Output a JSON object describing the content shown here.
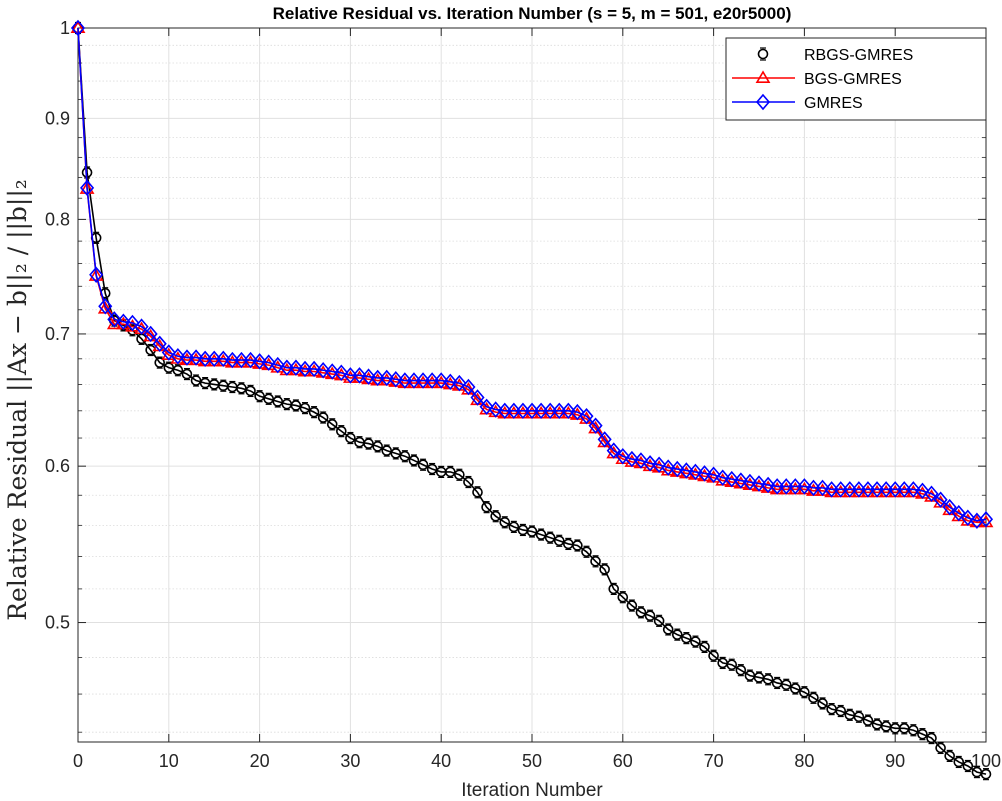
{
  "chart_data": {
    "type": "line",
    "title": "Relative Residual vs. Iteration Number (s = 5, m = 501, e20r5000)",
    "xlabel": "Iteration Number",
    "ylabel": "Relative Residual ||Ax − b||₂ / ||b||₂",
    "xlim": [
      0,
      100
    ],
    "ylim": [
      0.435,
      1.0
    ],
    "y_scale": "log",
    "grid": true,
    "legend_position": "top-right",
    "x_ticks": [
      0,
      10,
      20,
      30,
      40,
      50,
      60,
      70,
      80,
      90,
      100
    ],
    "x_tick_labels": [
      "0",
      "10",
      "20",
      "30",
      "40",
      "50",
      "60",
      "70",
      "80",
      "90",
      "100"
    ],
    "y_ticks": [
      0.5,
      0.6,
      0.7,
      0.8,
      0.9,
      1.0
    ],
    "y_tick_labels": [
      "0.5",
      "0.6",
      "0.7",
      "0.8",
      "0.9",
      "1"
    ],
    "series": [
      {
        "name": "RBGS-GMRES",
        "color": "#000000",
        "marker": "circle",
        "values": [
          1.0,
          0.845,
          0.783,
          0.734,
          0.711,
          0.707,
          0.703,
          0.696,
          0.687,
          0.677,
          0.673,
          0.671,
          0.668,
          0.663,
          0.661,
          0.66,
          0.659,
          0.658,
          0.657,
          0.655,
          0.651,
          0.649,
          0.647,
          0.645,
          0.644,
          0.642,
          0.639,
          0.635,
          0.63,
          0.625,
          0.62,
          0.617,
          0.616,
          0.614,
          0.611,
          0.609,
          0.607,
          0.604,
          0.601,
          0.598,
          0.596,
          0.596,
          0.594,
          0.589,
          0.582,
          0.572,
          0.566,
          0.562,
          0.559,
          0.557,
          0.556,
          0.554,
          0.552,
          0.55,
          0.548,
          0.547,
          0.543,
          0.537,
          0.532,
          0.52,
          0.515,
          0.51,
          0.506,
          0.504,
          0.501,
          0.496,
          0.493,
          0.491,
          0.489,
          0.486,
          0.481,
          0.477,
          0.476,
          0.473,
          0.47,
          0.469,
          0.468,
          0.466,
          0.465,
          0.463,
          0.461,
          0.458,
          0.455,
          0.452,
          0.451,
          0.449,
          0.448,
          0.446,
          0.444,
          0.443,
          0.442,
          0.442,
          0.441,
          0.439,
          0.437,
          0.432,
          0.428,
          0.425,
          0.423,
          0.42,
          0.419
        ]
      },
      {
        "name": "BGS-GMRES",
        "color": "#ff0000",
        "marker": "triangle",
        "values": [
          1.0,
          0.829,
          0.749,
          0.721,
          0.708,
          0.708,
          0.706,
          0.704,
          0.698,
          0.69,
          0.683,
          0.68,
          0.679,
          0.679,
          0.678,
          0.678,
          0.678,
          0.677,
          0.677,
          0.677,
          0.676,
          0.675,
          0.673,
          0.671,
          0.671,
          0.67,
          0.67,
          0.669,
          0.668,
          0.667,
          0.665,
          0.665,
          0.664,
          0.663,
          0.663,
          0.662,
          0.661,
          0.661,
          0.661,
          0.661,
          0.661,
          0.66,
          0.659,
          0.656,
          0.648,
          0.641,
          0.639,
          0.638,
          0.638,
          0.638,
          0.638,
          0.638,
          0.638,
          0.638,
          0.638,
          0.637,
          0.634,
          0.627,
          0.617,
          0.609,
          0.605,
          0.603,
          0.602,
          0.6,
          0.599,
          0.597,
          0.596,
          0.595,
          0.594,
          0.593,
          0.592,
          0.59,
          0.589,
          0.588,
          0.587,
          0.586,
          0.585,
          0.584,
          0.584,
          0.584,
          0.584,
          0.583,
          0.583,
          0.582,
          0.582,
          0.582,
          0.582,
          0.582,
          0.582,
          0.582,
          0.582,
          0.582,
          0.582,
          0.581,
          0.579,
          0.575,
          0.57,
          0.566,
          0.563,
          0.562,
          0.562
        ]
      },
      {
        "name": "GMRES",
        "color": "#0000ff",
        "marker": "diamond",
        "values": [
          1.0,
          0.83,
          0.75,
          0.723,
          0.712,
          0.71,
          0.709,
          0.706,
          0.7,
          0.692,
          0.685,
          0.682,
          0.681,
          0.681,
          0.68,
          0.68,
          0.68,
          0.679,
          0.679,
          0.679,
          0.678,
          0.677,
          0.675,
          0.673,
          0.673,
          0.672,
          0.672,
          0.671,
          0.67,
          0.669,
          0.667,
          0.667,
          0.666,
          0.665,
          0.665,
          0.664,
          0.663,
          0.663,
          0.663,
          0.663,
          0.663,
          0.662,
          0.661,
          0.658,
          0.65,
          0.643,
          0.641,
          0.64,
          0.64,
          0.64,
          0.64,
          0.64,
          0.64,
          0.64,
          0.64,
          0.639,
          0.636,
          0.629,
          0.619,
          0.611,
          0.607,
          0.605,
          0.604,
          0.602,
          0.601,
          0.599,
          0.598,
          0.597,
          0.596,
          0.595,
          0.594,
          0.592,
          0.591,
          0.59,
          0.589,
          0.588,
          0.587,
          0.586,
          0.586,
          0.586,
          0.586,
          0.585,
          0.585,
          0.584,
          0.584,
          0.584,
          0.584,
          0.584,
          0.584,
          0.584,
          0.584,
          0.584,
          0.584,
          0.583,
          0.581,
          0.577,
          0.572,
          0.568,
          0.565,
          0.563,
          0.564
        ]
      }
    ]
  }
}
